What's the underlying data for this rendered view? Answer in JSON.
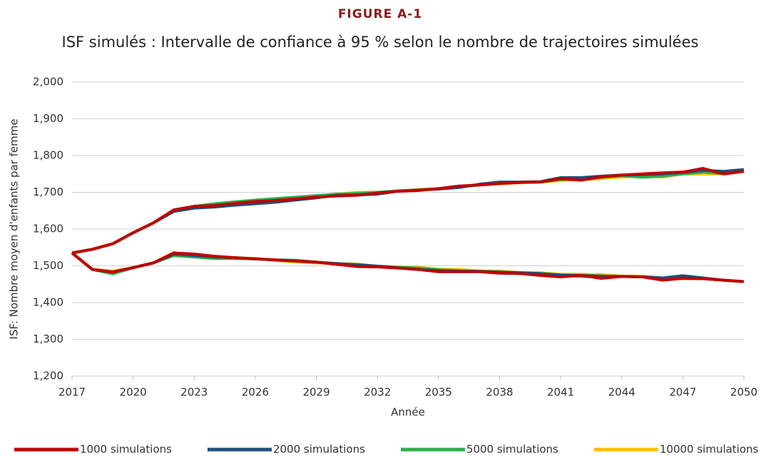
{
  "chart_data": {
    "type": "line",
    "title": "FIGURE A-1",
    "subtitle": "ISF simulés : Intervalle de confiance à 95 % selon le nombre de trajectoires simulées",
    "x_label": "Année",
    "y_label": "ISF: Nombre moyen d'enfants par femme",
    "x": [
      2017,
      2018,
      2019,
      2020,
      2021,
      2022,
      2023,
      2024,
      2025,
      2026,
      2027,
      2028,
      2029,
      2030,
      2031,
      2032,
      2033,
      2034,
      2035,
      2036,
      2037,
      2038,
      2039,
      2040,
      2041,
      2042,
      2043,
      2044,
      2045,
      2046,
      2047,
      2048,
      2049,
      2050
    ],
    "xlim": [
      2017,
      2050
    ],
    "xticks": [
      2017,
      2020,
      2023,
      2026,
      2029,
      2032,
      2035,
      2038,
      2041,
      2044,
      2047,
      2050
    ],
    "ylim": [
      1.2,
      2.0
    ],
    "yticks": [
      {
        "value": 1.2,
        "label": "1,200"
      },
      {
        "value": 1.3,
        "label": "1,300"
      },
      {
        "value": 1.4,
        "label": "1,400"
      },
      {
        "value": 1.5,
        "label": "1,500"
      },
      {
        "value": 1.6,
        "label": "1,600"
      },
      {
        "value": 1.7,
        "label": "1,700"
      },
      {
        "value": 1.8,
        "label": "1,800"
      },
      {
        "value": 1.9,
        "label": "1,900"
      },
      {
        "value": 2.0,
        "label": "2,000"
      }
    ],
    "grid": true,
    "legend": "bottom",
    "series": [
      {
        "name": "1000 simulations",
        "color": "#c00000",
        "upper": [
          1.535,
          1.545,
          1.56,
          1.59,
          1.617,
          1.652,
          1.662,
          1.664,
          1.67,
          1.675,
          1.678,
          1.682,
          1.687,
          1.69,
          1.692,
          1.698,
          1.703,
          1.705,
          1.71,
          1.717,
          1.72,
          1.724,
          1.727,
          1.728,
          1.737,
          1.733,
          1.742,
          1.747,
          1.75,
          1.753,
          1.755,
          1.765,
          1.75,
          1.757
        ],
        "lower": [
          1.535,
          1.49,
          1.483,
          1.495,
          1.508,
          1.535,
          1.532,
          1.526,
          1.522,
          1.519,
          1.516,
          1.513,
          1.51,
          1.504,
          1.498,
          1.497,
          1.494,
          1.49,
          1.484,
          1.484,
          1.484,
          1.48,
          1.479,
          1.474,
          1.47,
          1.474,
          1.466,
          1.471,
          1.47,
          1.461,
          1.466,
          1.465,
          1.461,
          1.457
        ]
      },
      {
        "name": "2000 simulations",
        "color": "#1f4e79",
        "upper": [
          1.535,
          1.545,
          1.56,
          1.59,
          1.617,
          1.648,
          1.657,
          1.66,
          1.665,
          1.669,
          1.673,
          1.679,
          1.685,
          1.692,
          1.693,
          1.695,
          1.703,
          1.706,
          1.709,
          1.713,
          1.722,
          1.728,
          1.728,
          1.729,
          1.74,
          1.74,
          1.744,
          1.747,
          1.748,
          1.75,
          1.754,
          1.76,
          1.757,
          1.762
        ],
        "lower": [
          1.535,
          1.49,
          1.483,
          1.495,
          1.508,
          1.532,
          1.528,
          1.524,
          1.522,
          1.519,
          1.516,
          1.513,
          1.51,
          1.506,
          1.503,
          1.499,
          1.495,
          1.49,
          1.487,
          1.485,
          1.485,
          1.483,
          1.481,
          1.479,
          1.475,
          1.474,
          1.472,
          1.471,
          1.47,
          1.467,
          1.473,
          1.467,
          1.461,
          1.457
        ]
      },
      {
        "name": "5000 simulations",
        "color": "#2db04b",
        "upper": [
          1.535,
          1.545,
          1.56,
          1.59,
          1.617,
          1.652,
          1.662,
          1.669,
          1.674,
          1.679,
          1.683,
          1.687,
          1.691,
          1.695,
          1.697,
          1.7,
          1.704,
          1.706,
          1.71,
          1.715,
          1.72,
          1.725,
          1.727,
          1.728,
          1.735,
          1.737,
          1.741,
          1.745,
          1.741,
          1.744,
          1.75,
          1.755,
          1.751,
          1.757
        ],
        "lower": [
          1.535,
          1.49,
          1.478,
          1.495,
          1.508,
          1.528,
          1.524,
          1.52,
          1.52,
          1.519,
          1.516,
          1.515,
          1.51,
          1.506,
          1.503,
          1.499,
          1.496,
          1.494,
          1.489,
          1.487,
          1.485,
          1.483,
          1.481,
          1.479,
          1.475,
          1.471,
          1.47,
          1.471,
          1.47,
          1.467,
          1.466,
          1.465,
          1.461,
          1.457
        ]
      },
      {
        "name": "10000 simulations",
        "color": "#ffc000",
        "upper": [
          1.535,
          1.545,
          1.56,
          1.59,
          1.617,
          1.652,
          1.66,
          1.665,
          1.672,
          1.676,
          1.68,
          1.685,
          1.69,
          1.695,
          1.7,
          1.7,
          1.703,
          1.708,
          1.71,
          1.716,
          1.72,
          1.723,
          1.726,
          1.728,
          1.732,
          1.735,
          1.737,
          1.742,
          1.743,
          1.742,
          1.75,
          1.75,
          1.75,
          1.757
        ],
        "lower": [
          1.535,
          1.49,
          1.486,
          1.495,
          1.508,
          1.536,
          1.528,
          1.524,
          1.522,
          1.52,
          1.515,
          1.51,
          1.508,
          1.506,
          1.505,
          1.499,
          1.497,
          1.496,
          1.491,
          1.49,
          1.486,
          1.486,
          1.482,
          1.481,
          1.477,
          1.477,
          1.476,
          1.472,
          1.472,
          1.467,
          1.465,
          1.465,
          1.461,
          1.457
        ]
      }
    ]
  }
}
